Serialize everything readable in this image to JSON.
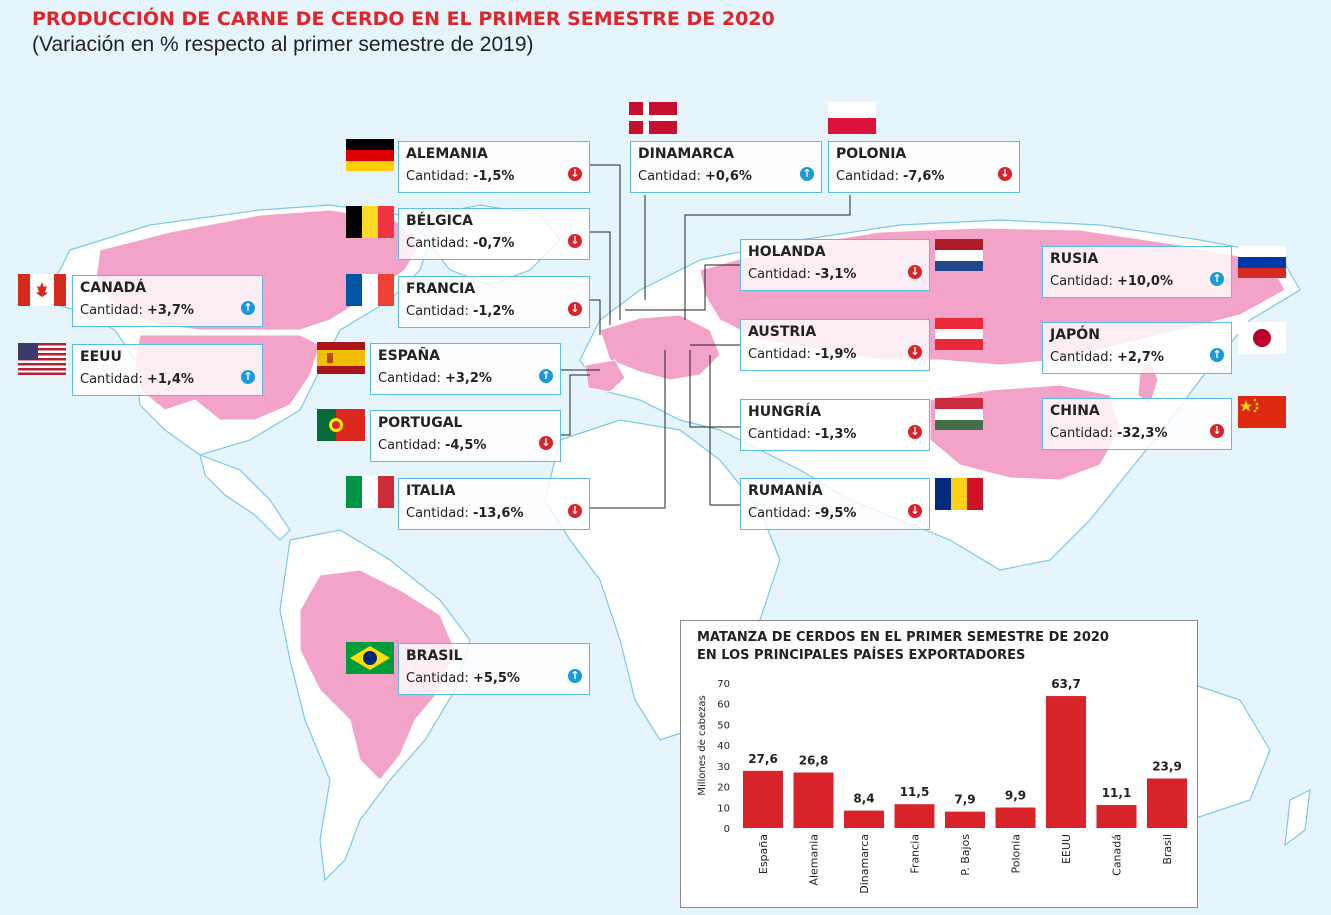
{
  "title": "PRODUCCIÓN DE CARNE DE CERDO EN EL PRIMER SEMESTRE DE 2020",
  "subtitle": "(Variación en % respecto al primer semestre de 2019)",
  "qty_label": "Cantidad:",
  "countries": [
    {
      "id": "alemania",
      "name": "ALEMANIA",
      "value": "-1,5%",
      "trend": "down"
    },
    {
      "id": "dinamarca",
      "name": "DINAMARCA",
      "value": "+0,6%",
      "trend": "up"
    },
    {
      "id": "polonia",
      "name": "POLONIA",
      "value": "-7,6%",
      "trend": "down"
    },
    {
      "id": "belgica",
      "name": "BÉLGICA",
      "value": "-0,7%",
      "trend": "down"
    },
    {
      "id": "holanda",
      "name": "HOLANDA",
      "value": "-3,1%",
      "trend": "down"
    },
    {
      "id": "rusia",
      "name": "RUSIA",
      "value": "+10,0%",
      "trend": "up"
    },
    {
      "id": "canada",
      "name": "CANADÁ",
      "value": "+3,7%",
      "trend": "up"
    },
    {
      "id": "francia",
      "name": "FRANCIA",
      "value": "-1,2%",
      "trend": "down"
    },
    {
      "id": "austria",
      "name": "AUSTRIA",
      "value": "-1,9%",
      "trend": "down"
    },
    {
      "id": "japon",
      "name": "JAPÓN",
      "value": "+2,7%",
      "trend": "up"
    },
    {
      "id": "eeuu",
      "name": "EEUU",
      "value": "+1,4%",
      "trend": "up"
    },
    {
      "id": "espana",
      "name": "ESPAÑA",
      "value": "+3,2%",
      "trend": "up"
    },
    {
      "id": "portugal",
      "name": "PORTUGAL",
      "value": "-4,5%",
      "trend": "down"
    },
    {
      "id": "hungria",
      "name": "HUNGRÍA",
      "value": "-1,3%",
      "trend": "down"
    },
    {
      "id": "china",
      "name": "CHINA",
      "value": "-32,3%",
      "trend": "down"
    },
    {
      "id": "italia",
      "name": "ITALIA",
      "value": "-13,6%",
      "trend": "down"
    },
    {
      "id": "rumania",
      "name": "RUMANÍA",
      "value": "-9,5%",
      "trend": "down"
    },
    {
      "id": "brasil",
      "name": "BRASIL",
      "value": "+5,5%",
      "trend": "up"
    }
  ],
  "colors": {
    "accent": "#e1232a",
    "map_highlight": "#f4a3c8",
    "land": "#ffffff",
    "sea": "#e6f5fc",
    "bar": "#d8232a",
    "up": "#1a9ad6",
    "down": "#d8232a",
    "border": "#59bde8"
  },
  "chart_data": {
    "type": "bar",
    "title": "MATANZA DE CERDOS EN EL PRIMER SEMESTRE DE 2020",
    "subtitle": "EN LOS PRINCIPALES PAÍSES EXPORTADORES",
    "ylabel": "Millones de cabezas",
    "xlabel": "",
    "ylim": [
      0,
      70
    ],
    "yticks": [
      0,
      10,
      20,
      30,
      40,
      50,
      60,
      70
    ],
    "categories": [
      "España",
      "Alemania",
      "Dinamarca",
      "Francia",
      "P. Bajos",
      "Polonia",
      "EEUU",
      "Canadá",
      "Brasil"
    ],
    "values": [
      27.6,
      26.8,
      8.4,
      11.5,
      7.9,
      9.9,
      63.7,
      11.1,
      23.9
    ],
    "value_labels": [
      "27,6",
      "26,8",
      "8,4",
      "11,5",
      "7,9",
      "9,9",
      "63,7",
      "11,1",
      "23,9"
    ],
    "grid": false
  }
}
